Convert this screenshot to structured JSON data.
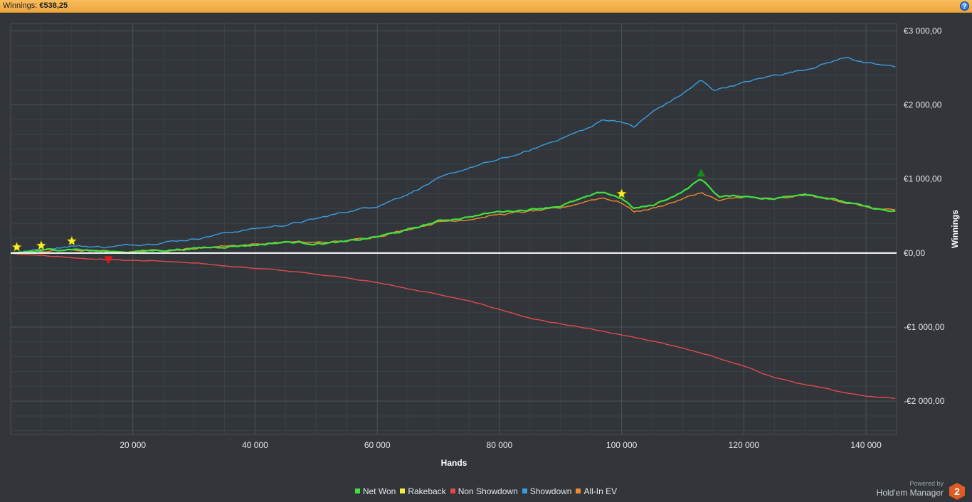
{
  "header": {
    "label": "Winnings:",
    "value": "€538,25",
    "help_icon": "help-icon"
  },
  "chart_data": {
    "type": "line",
    "xlabel": "Hands",
    "ylabel": "Winnings",
    "xlim": [
      0,
      145000
    ],
    "ylim": [
      -2450,
      3100
    ],
    "x_ticks": [
      20000,
      40000,
      60000,
      80000,
      100000,
      120000,
      140000
    ],
    "x_tick_labels": [
      "20 000",
      "40 000",
      "60 000",
      "80 000",
      "100 000",
      "120 000",
      "140 000"
    ],
    "y_ticks": [
      3000,
      2000,
      1000,
      0,
      -1000,
      -2000
    ],
    "y_tick_labels": [
      "€3 000,00",
      "€2 000,00",
      "€1 000,00",
      "€0,00",
      "-€1 000,00",
      "-€2 000,00"
    ],
    "grid": true,
    "legend_position": "bottom",
    "series": [
      {
        "name": "Net Won",
        "color": "#3ee23e",
        "x": [
          0,
          5000,
          10000,
          15000,
          20000,
          25000,
          30000,
          35000,
          40000,
          45000,
          50000,
          55000,
          60000,
          65000,
          70000,
          75000,
          80000,
          85000,
          90000,
          95000,
          97000,
          100000,
          102000,
          105000,
          110000,
          113000,
          116000,
          120000,
          125000,
          130000,
          135000,
          140000,
          145000
        ],
        "values": [
          0,
          30,
          60,
          20,
          20,
          40,
          60,
          90,
          110,
          150,
          130,
          150,
          220,
          310,
          430,
          490,
          560,
          590,
          640,
          770,
          820,
          740,
          600,
          640,
          830,
          1000,
          760,
          770,
          730,
          810,
          720,
          620,
          550
        ]
      },
      {
        "name": "Rakeback",
        "color": "#f2ef3a",
        "x": [
          0,
          145000
        ],
        "values": [
          0,
          0
        ]
      },
      {
        "name": "Non Showdown",
        "color": "#e04a4a",
        "x": [
          0,
          10000,
          16000,
          25000,
          35000,
          45000,
          55000,
          60000,
          65000,
          70000,
          75000,
          80000,
          85000,
          90000,
          95000,
          100000,
          105000,
          110000,
          115000,
          120000,
          125000,
          130000,
          135000,
          140000,
          145000
        ],
        "values": [
          0,
          -60,
          -90,
          -110,
          -170,
          -240,
          -330,
          -400,
          -480,
          -560,
          -650,
          -760,
          -880,
          -960,
          -1030,
          -1110,
          -1190,
          -1280,
          -1400,
          -1530,
          -1680,
          -1780,
          -1860,
          -1930,
          -1960
        ]
      },
      {
        "name": "Showdown",
        "color": "#3a9de0",
        "x": [
          0,
          5000,
          10000,
          15000,
          20000,
          25000,
          30000,
          35000,
          40000,
          45000,
          50000,
          55000,
          60000,
          65000,
          70000,
          75000,
          80000,
          85000,
          87000,
          90000,
          95000,
          97000,
          100000,
          102000,
          105000,
          110000,
          113000,
          115000,
          120000,
          125000,
          130000,
          135000,
          137000,
          140000,
          145000
        ],
        "values": [
          0,
          50,
          100,
          80,
          110,
          150,
          190,
          270,
          330,
          380,
          460,
          560,
          640,
          800,
          1000,
          1150,
          1260,
          1380,
          1450,
          1550,
          1700,
          1800,
          1780,
          1700,
          1900,
          2150,
          2330,
          2200,
          2300,
          2400,
          2480,
          2600,
          2650,
          2560,
          2510
        ]
      },
      {
        "name": "All-In EV",
        "color": "#f08a2e",
        "x": [
          0,
          5000,
          10000,
          15000,
          20000,
          25000,
          30000,
          35000,
          40000,
          45000,
          50000,
          55000,
          60000,
          65000,
          70000,
          75000,
          80000,
          85000,
          90000,
          95000,
          97000,
          100000,
          102000,
          105000,
          110000,
          113000,
          116000,
          120000,
          125000,
          130000,
          135000,
          140000,
          145000
        ],
        "values": [
          0,
          20,
          40,
          20,
          20,
          40,
          60,
          100,
          120,
          150,
          140,
          160,
          230,
          320,
          420,
          460,
          520,
          560,
          600,
          720,
          750,
          680,
          560,
          600,
          730,
          820,
          700,
          760,
          720,
          780,
          720,
          620,
          560
        ]
      }
    ],
    "markers": [
      {
        "type": "star",
        "x": 1000,
        "y": 80,
        "color": "#f5f02a"
      },
      {
        "type": "star",
        "x": 5000,
        "y": 100,
        "color": "#f5f02a"
      },
      {
        "type": "star",
        "x": 10000,
        "y": 160,
        "color": "#f5f02a"
      },
      {
        "type": "star",
        "x": 100000,
        "y": 800,
        "color": "#f5f02a"
      },
      {
        "type": "triangle-down",
        "x": 16000,
        "y": -90,
        "color": "#e01c1c"
      },
      {
        "type": "triangle-up",
        "x": 113000,
        "y": 1080,
        "color": "#178a17"
      }
    ]
  },
  "legend": [
    {
      "label": "Net Won",
      "color": "#3ee23e"
    },
    {
      "label": "Rakeback",
      "color": "#f2ef3a"
    },
    {
      "label": "Non Showdown",
      "color": "#e04a4a"
    },
    {
      "label": "Showdown",
      "color": "#3a9de0"
    },
    {
      "label": "All-In EV",
      "color": "#f08a2e"
    }
  ],
  "footer": {
    "powered_by": "Powered by",
    "product": "Hold'em Manager",
    "logo_digit": "2",
    "logo_icon": "hem2-logo-icon"
  }
}
